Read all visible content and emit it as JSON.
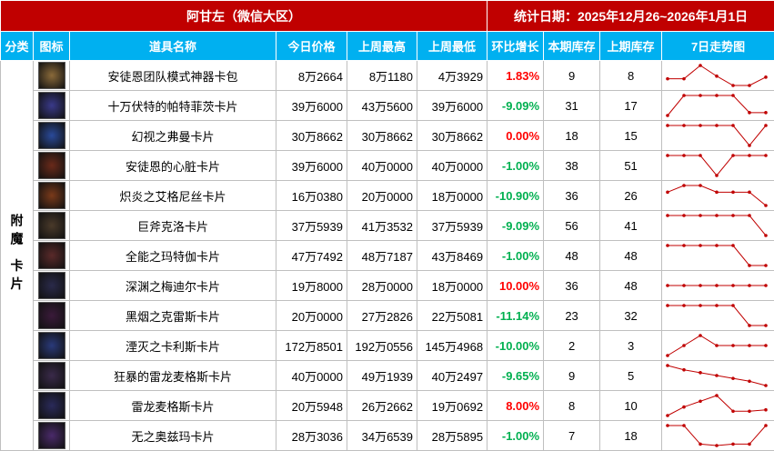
{
  "header": {
    "title": "阿甘左（微信大区）",
    "date": "统计日期：2025年12月26~2026年1月1日"
  },
  "table": {
    "columns": [
      "分类",
      "图标",
      "道具名称",
      "今日价格",
      "上周最高",
      "上周最低",
      "环比增长",
      "本期库存",
      "上期库存",
      "7日走势图"
    ],
    "category": "附魔 卡片",
    "up_color": "#ff0000",
    "down_color": "#00b050",
    "trend_color": "#c00000",
    "rows": [
      [
        "安徒恩团队模式神器卡包",
        "8万2664",
        "8万1180",
        "4万3929",
        "1.83%",
        "9",
        "8"
      ],
      [
        "十万伏特的帕特菲茨卡片",
        "39万6000",
        "43万5600",
        "39万6000",
        "-9.09%",
        "31",
        "17"
      ],
      [
        "幻视之弗曼卡片",
        "30万8662",
        "30万8662",
        "30万8662",
        "0.00%",
        "18",
        "15"
      ],
      [
        "安徒恩的心脏卡片",
        "39万6000",
        "40万0000",
        "40万0000",
        "-1.00%",
        "38",
        "51"
      ],
      [
        "炽炎之艾格尼丝卡片",
        "16万0380",
        "20万0000",
        "18万0000",
        "-10.90%",
        "36",
        "26"
      ],
      [
        "巨斧克洛卡片",
        "37万5939",
        "41万3532",
        "37万5939",
        "-9.09%",
        "56",
        "41"
      ],
      [
        "全能之玛特伽卡片",
        "47万7492",
        "48万7187",
        "43万8469",
        "-1.00%",
        "48",
        "48"
      ],
      [
        "深渊之梅迪尔卡片",
        "19万8000",
        "28万0000",
        "18万0000",
        "10.00%",
        "36",
        "48"
      ],
      [
        "黑烟之克雷斯卡片",
        "20万0000",
        "27万2826",
        "22万5081",
        "-11.14%",
        "23",
        "32"
      ],
      [
        "湮灭之卡利斯卡片",
        "172万8501",
        "192万0556",
        "145万4968",
        "-10.00%",
        "2",
        "3"
      ],
      [
        "狂暴的雷龙麦格斯卡片",
        "40万0000",
        "49万1939",
        "40万2497",
        "-9.65%",
        "9",
        "5"
      ],
      [
        "雷龙麦格斯卡片",
        "20万5948",
        "26万2662",
        "19万0692",
        "8.00%",
        "8",
        "10"
      ],
      [
        "无之奥兹玛卡片",
        "28万3036",
        "34万6539",
        "28万5895",
        "-1.00%",
        "7",
        "18"
      ]
    ],
    "trends": [
      [
        50,
        50,
        90,
        58,
        30,
        30,
        55
      ],
      [
        20,
        90,
        90,
        90,
        90,
        30,
        30
      ],
      [
        90,
        90,
        90,
        90,
        90,
        20,
        90
      ],
      [
        90,
        90,
        90,
        20,
        90,
        90,
        90
      ],
      [
        70,
        90,
        90,
        70,
        70,
        70,
        30
      ],
      [
        90,
        90,
        90,
        90,
        90,
        90,
        20
      ],
      [
        90,
        90,
        90,
        90,
        90,
        20,
        20
      ],
      [
        50,
        50,
        50,
        50,
        50,
        50,
        50
      ],
      [
        90,
        90,
        90,
        90,
        90,
        20,
        20
      ],
      [
        20,
        55,
        90,
        55,
        55,
        55,
        55
      ],
      [
        90,
        75,
        65,
        55,
        45,
        35,
        20
      ],
      [
        20,
        50,
        70,
        90,
        35,
        35,
        40
      ],
      [
        85,
        85,
        20,
        15,
        20,
        20,
        85
      ]
    ]
  }
}
